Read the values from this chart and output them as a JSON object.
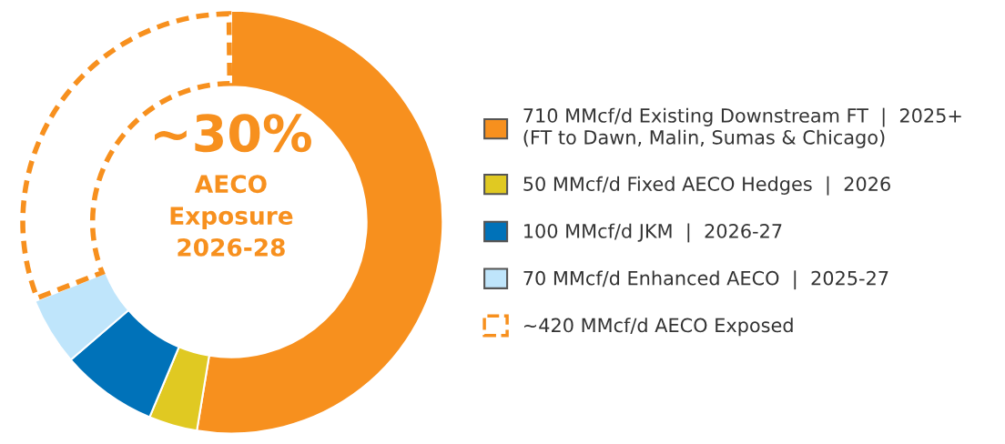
{
  "chart_data": {
    "type": "donut",
    "categories": [
      "710 MMcf/d Existing Downstream FT  |  2025+\n(FT to Dawn, Malin, Sumas & Chicago)",
      "50 MMcf/d Fixed AECO Hedges  |  2026",
      "100 MMcf/d JKM  |  2026-27",
      "70 MMcf/d Enhanced AECO  |  2025-27",
      "~420 MMcf/d AECO Exposed"
    ],
    "values": [
      710,
      50,
      100,
      70,
      420
    ],
    "colors": [
      "#f7901e",
      "#e0c922",
      "#0072b9",
      "#bfe5fb",
      "#f7901e"
    ],
    "line_style": [
      "solid",
      "solid",
      "solid",
      "solid",
      "dashed"
    ],
    "annotations": [
      "~30%",
      "AECO",
      "Exposure",
      "2026-28"
    ],
    "legend": "right"
  }
}
